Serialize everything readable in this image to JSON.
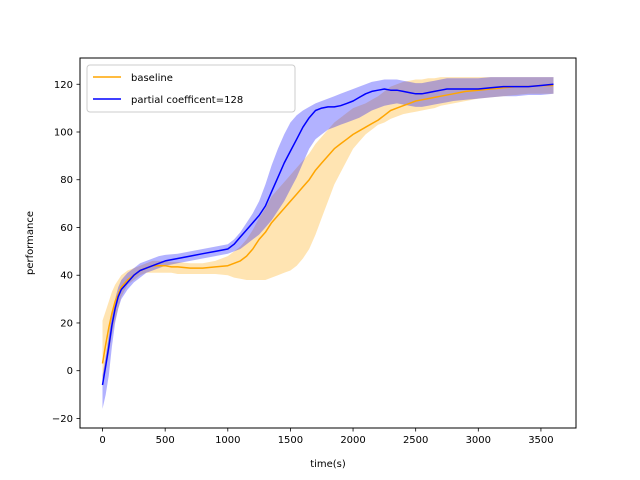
{
  "chart_data": {
    "type": "line",
    "xlabel": "time(s)",
    "ylabel": "performance",
    "xlim": [
      -180,
      3780
    ],
    "ylim": [
      -24,
      131
    ],
    "xticks": [
      0,
      500,
      1000,
      1500,
      2000,
      2500,
      3000,
      3500
    ],
    "yticks": [
      -20,
      0,
      20,
      40,
      60,
      80,
      100,
      120
    ],
    "grid": false,
    "legend_position": "upper-left",
    "series": [
      {
        "name": "baseline",
        "color": "#ffa500",
        "fill_color": "#ffa500",
        "x": [
          0,
          25,
          50,
          75,
          100,
          125,
          150,
          200,
          250,
          300,
          350,
          400,
          450,
          500,
          550,
          600,
          700,
          800,
          900,
          1000,
          1050,
          1100,
          1150,
          1200,
          1250,
          1300,
          1350,
          1400,
          1450,
          1500,
          1550,
          1600,
          1650,
          1700,
          1750,
          1800,
          1850,
          1900,
          1950,
          2000,
          2050,
          2100,
          2150,
          2200,
          2250,
          2300,
          2350,
          2400,
          2450,
          2500,
          2550,
          2600,
          2650,
          2700,
          2800,
          2900,
          3000,
          3100,
          3200,
          3300,
          3400,
          3500,
          3600
        ],
        "y": [
          3,
          11,
          18,
          24,
          29,
          32,
          35,
          38,
          40,
          42,
          43,
          44,
          44,
          44,
          43.5,
          43.5,
          43,
          43,
          43.5,
          44,
          45,
          46,
          48,
          51,
          55,
          58,
          62,
          65,
          68,
          71,
          74,
          77,
          80,
          84,
          87,
          90,
          93,
          95,
          97,
          99,
          100.5,
          102,
          103.5,
          105,
          107,
          109,
          110,
          111,
          112,
          113,
          113.5,
          114,
          114.5,
          115,
          116,
          117,
          117.5,
          118,
          118.5,
          119,
          119,
          119.5,
          119.5
        ],
        "upper": [
          21,
          25,
          29,
          33,
          36,
          38,
          40,
          42,
          43,
          44,
          45,
          46,
          46,
          46,
          45.5,
          45.5,
          45,
          45,
          46,
          48,
          50,
          52,
          55,
          59,
          64,
          68,
          73,
          76,
          79,
          82,
          85,
          88,
          91,
          95,
          98,
          101,
          104,
          106,
          108,
          110,
          111,
          112,
          113.5,
          115,
          117,
          119,
          120,
          121,
          121.5,
          122,
          122,
          122.5,
          122.5,
          123,
          123,
          123,
          123,
          123,
          123,
          123,
          123,
          123,
          123
        ],
        "lower": [
          -6,
          0,
          7,
          15,
          21,
          26,
          31,
          36,
          38,
          40,
          41,
          41,
          41,
          41,
          41,
          40.5,
          40.5,
          40.5,
          40.5,
          40,
          39,
          38.5,
          38,
          38,
          38,
          38,
          39,
          40,
          41,
          42,
          44,
          47,
          51,
          57,
          64,
          71,
          78,
          83,
          88,
          93,
          96,
          99,
          101,
          103,
          104,
          105.5,
          106.5,
          107.5,
          108,
          108.5,
          109,
          109.5,
          110,
          111,
          112,
          113,
          114,
          114.5,
          115,
          115.5,
          116,
          116,
          116
        ]
      },
      {
        "name": "partial coefficent=128",
        "color": "#0000ff",
        "fill_color": "#0000ff",
        "x": [
          0,
          25,
          50,
          75,
          100,
          125,
          150,
          200,
          250,
          300,
          350,
          400,
          450,
          500,
          600,
          700,
          800,
          900,
          1000,
          1050,
          1100,
          1150,
          1200,
          1250,
          1300,
          1350,
          1400,
          1450,
          1500,
          1550,
          1600,
          1650,
          1700,
          1750,
          1800,
          1850,
          1900,
          1950,
          2000,
          2050,
          2100,
          2150,
          2200,
          2250,
          2300,
          2350,
          2400,
          2450,
          2500,
          2550,
          2600,
          2650,
          2700,
          2750,
          2800,
          2900,
          3000,
          3100,
          3200,
          3300,
          3400,
          3500,
          3600
        ],
        "y": [
          -6,
          2,
          10,
          19,
          26,
          31,
          34,
          37,
          40,
          42,
          43,
          44,
          45,
          46,
          47,
          48,
          49,
          50,
          51,
          53,
          56,
          59,
          62,
          65,
          69,
          75,
          81,
          87,
          92,
          97,
          102,
          106,
          109,
          110,
          110.5,
          110.5,
          111,
          112,
          113,
          114.5,
          116,
          117,
          117.5,
          118,
          117.5,
          117.5,
          117,
          116.5,
          116,
          116,
          116.5,
          117,
          117.5,
          118,
          118,
          118,
          118,
          118.5,
          119,
          119,
          119,
          119.5,
          120
        ],
        "upper": [
          -2,
          6,
          15,
          24,
          30,
          35,
          38,
          41,
          43,
          45,
          46,
          47,
          48,
          48.5,
          49,
          50,
          51,
          52,
          53,
          55,
          58,
          62,
          66,
          71,
          78,
          86,
          93,
          99,
          104,
          107,
          109,
          110.5,
          112,
          113,
          114,
          115,
          116,
          117,
          118,
          119,
          120,
          121,
          121.5,
          122,
          122,
          122,
          121.5,
          121,
          120.5,
          120.5,
          121,
          121.5,
          122,
          122.5,
          122.5,
          122.5,
          122.5,
          123,
          123,
          123,
          123,
          123,
          123
        ],
        "lower": [
          -16,
          -10,
          -2,
          10,
          20,
          26,
          30,
          34,
          37,
          39,
          41,
          42,
          43,
          44,
          45,
          46,
          47,
          48,
          49,
          50,
          51,
          53,
          55,
          57,
          60,
          63,
          67,
          71,
          76,
          81,
          87,
          93,
          97,
          99,
          101,
          102,
          103,
          104,
          105,
          106,
          107.5,
          109,
          110,
          111,
          111.5,
          112,
          111.5,
          111,
          110.5,
          110.5,
          111,
          111.5,
          112,
          112.5,
          113,
          113.5,
          114,
          114.5,
          115,
          115,
          115.5,
          115.5,
          116
        ]
      }
    ]
  }
}
